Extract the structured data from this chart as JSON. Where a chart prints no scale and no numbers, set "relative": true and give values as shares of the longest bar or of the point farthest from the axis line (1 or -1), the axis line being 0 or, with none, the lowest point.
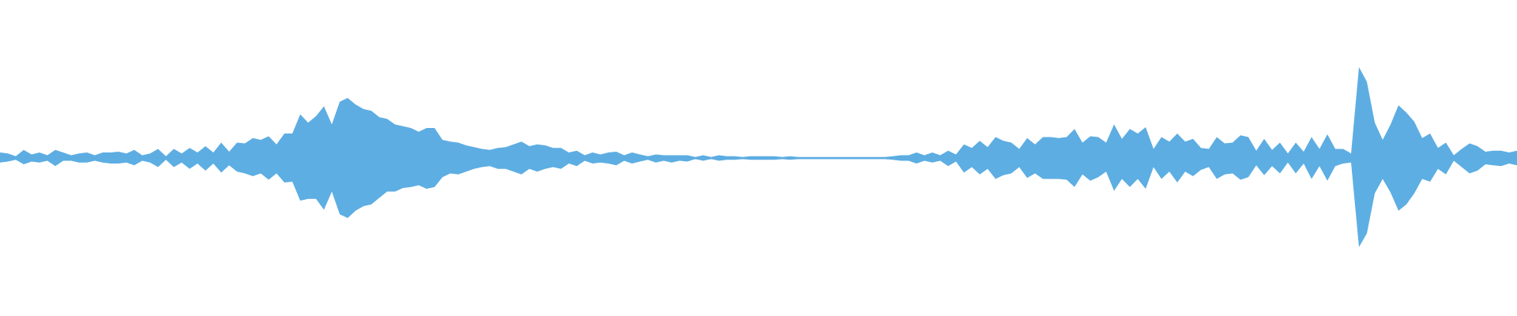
{
  "chart_data": {
    "type": "area",
    "relative": true,
    "categories": [
      null,
      null,
      null,
      null,
      null,
      null,
      null,
      null,
      null,
      null,
      null,
      null,
      null,
      null,
      null,
      null,
      null,
      null,
      null,
      null,
      null,
      null,
      null,
      null,
      null,
      null,
      null,
      null,
      null,
      null,
      null,
      null,
      null,
      null,
      null,
      null,
      null,
      null,
      null,
      null,
      null,
      null,
      null,
      null,
      null,
      null,
      null,
      null,
      null,
      null,
      null,
      null,
      null,
      null,
      null,
      null,
      null,
      null,
      null,
      null,
      null,
      null,
      null,
      null,
      null,
      null,
      null,
      null,
      null,
      null,
      null,
      null,
      null,
      null,
      null,
      null,
      null,
      null,
      null,
      null,
      null,
      null,
      null,
      null,
      null,
      null,
      null,
      null,
      null,
      null,
      null,
      null,
      null,
      null,
      null,
      null,
      null,
      null,
      null,
      null,
      null,
      null,
      null,
      null,
      null,
      null,
      null,
      null,
      null,
      null,
      null,
      null,
      null,
      null,
      null,
      null,
      null,
      null,
      null,
      null,
      null,
      null,
      null,
      null,
      null,
      null,
      null,
      null,
      null,
      null,
      null,
      null,
      null,
      null,
      null,
      null,
      null,
      null,
      null,
      null,
      null,
      null,
      null,
      null,
      null,
      null,
      null,
      null,
      null,
      null,
      null,
      null,
      null,
      null,
      null,
      null,
      null,
      null,
      null,
      null,
      null,
      null,
      null,
      null,
      null,
      null,
      null,
      null,
      null,
      null,
      null,
      null,
      null,
      null,
      null,
      null,
      null,
      null,
      null,
      null,
      null,
      null,
      null,
      null,
      null,
      null,
      null,
      null,
      null,
      null,
      null,
      null,
      null
    ],
    "series": [
      {
        "color": "#5dade2",
        "values": [
          0.06,
          0.05,
          0.02,
          0.09,
          0.04,
          0.06,
          0.03,
          0.09,
          0.06,
          0.03,
          0.05,
          0.06,
          0.03,
          0.06,
          0.06,
          0.07,
          0.05,
          0.09,
          0.03,
          0.05,
          0.1,
          0.02,
          0.1,
          0.05,
          0.11,
          0.06,
          0.13,
          0.06,
          0.17,
          0.07,
          0.17,
          0.16,
          0.22,
          0.2,
          0.24,
          0.15,
          0.27,
          0.27,
          0.48,
          0.39,
          0.46,
          0.57,
          0.37,
          0.62,
          0.66,
          0.59,
          0.54,
          0.52,
          0.45,
          0.43,
          0.37,
          0.35,
          0.33,
          0.29,
          0.33,
          0.33,
          0.2,
          0.18,
          0.17,
          0.14,
          0.12,
          0.1,
          0.09,
          0.11,
          0.12,
          0.15,
          0.18,
          0.13,
          0.15,
          0.14,
          0.11,
          0.11,
          0.06,
          0.08,
          0.03,
          0.06,
          0.04,
          0.06,
          0.07,
          0.03,
          0.06,
          0.04,
          0.02,
          0.04,
          0.03,
          0.03,
          0.03,
          0.03,
          0.01,
          0.03,
          0.01,
          0.03,
          0.02,
          0.02,
          0.01,
          0.02,
          0.02,
          0.02,
          0.02,
          0.01,
          0.02,
          0.01,
          0.01,
          0.01,
          0.01,
          0.01,
          0.01,
          0.01,
          0.01,
          0.01,
          0.01,
          0.01,
          0.01,
          0.02,
          0.03,
          0.03,
          0.06,
          0.03,
          0.06,
          0.03,
          0.08,
          0.04,
          0.15,
          0.11,
          0.19,
          0.12,
          0.23,
          0.19,
          0.17,
          0.1,
          0.22,
          0.15,
          0.23,
          0.23,
          0.22,
          0.23,
          0.32,
          0.17,
          0.24,
          0.23,
          0.17,
          0.37,
          0.21,
          0.32,
          0.27,
          0.34,
          0.1,
          0.23,
          0.18,
          0.27,
          0.18,
          0.21,
          0.11,
          0.1,
          0.23,
          0.16,
          0.17,
          0.25,
          0.23,
          0.08,
          0.21,
          0.09,
          0.17,
          0.05,
          0.17,
          0.07,
          0.23,
          0.1,
          0.26,
          0.1,
          0.1,
          0.05,
          1,
          0.84,
          0.39,
          0.2,
          0.37,
          0.58,
          0.5,
          0.4,
          0.22,
          0.27,
          0.11,
          0.17,
          0.03,
          0.1,
          0.16,
          0.13,
          0.07,
          0.08,
          0.08,
          0.06,
          0.08
        ]
      },
      {
        "color": "#5daee2",
        "values": [
          -0.05,
          -0.04,
          -0.02,
          -0.07,
          -0.04,
          -0.05,
          -0.03,
          -0.09,
          -0.03,
          -0.03,
          -0.05,
          -0.05,
          -0.03,
          -0.05,
          -0.06,
          -0.06,
          -0.05,
          -0.08,
          -0.03,
          -0.05,
          -0.1,
          -0.02,
          -0.1,
          -0.05,
          -0.12,
          -0.06,
          -0.14,
          -0.06,
          -0.16,
          -0.08,
          -0.15,
          -0.17,
          -0.2,
          -0.17,
          -0.24,
          -0.17,
          -0.27,
          -0.26,
          -0.47,
          -0.45,
          -0.45,
          -0.57,
          -0.37,
          -0.62,
          -0.66,
          -0.58,
          -0.53,
          -0.51,
          -0.44,
          -0.37,
          -0.37,
          -0.33,
          -0.32,
          -0.3,
          -0.34,
          -0.32,
          -0.21,
          -0.17,
          -0.18,
          -0.15,
          -0.12,
          -0.1,
          -0.09,
          -0.12,
          -0.12,
          -0.15,
          -0.18,
          -0.12,
          -0.15,
          -0.12,
          -0.1,
          -0.12,
          -0.06,
          -0.09,
          -0.03,
          -0.06,
          -0.05,
          -0.06,
          -0.08,
          -0.03,
          -0.06,
          -0.04,
          -0.02,
          -0.05,
          -0.03,
          -0.05,
          -0.03,
          -0.04,
          -0.01,
          -0.03,
          -0.01,
          -0.03,
          -0.02,
          -0.02,
          -0.01,
          -0.02,
          -0.02,
          -0.02,
          -0.02,
          -0.01,
          -0.02,
          -0.01,
          -0.01,
          -0.01,
          -0.01,
          -0.01,
          -0.01,
          -0.01,
          -0.01,
          -0.01,
          -0.01,
          -0.01,
          -0.01,
          -0.02,
          -0.03,
          -0.03,
          -0.06,
          -0.03,
          -0.05,
          -0.03,
          -0.09,
          -0.04,
          -0.16,
          -0.1,
          -0.18,
          -0.12,
          -0.23,
          -0.19,
          -0.17,
          -0.1,
          -0.22,
          -0.17,
          -0.23,
          -0.23,
          -0.23,
          -0.24,
          -0.32,
          -0.18,
          -0.25,
          -0.21,
          -0.15,
          -0.36,
          -0.23,
          -0.32,
          -0.23,
          -0.34,
          -0.1,
          -0.23,
          -0.15,
          -0.27,
          -0.15,
          -0.2,
          -0.13,
          -0.1,
          -0.23,
          -0.18,
          -0.17,
          -0.24,
          -0.21,
          -0.08,
          -0.19,
          -0.09,
          -0.17,
          -0.05,
          -0.17,
          -0.06,
          -0.23,
          -0.09,
          -0.25,
          -0.09,
          -0.06,
          -0.05,
          -0.98,
          -0.83,
          -0.39,
          -0.23,
          -0.38,
          -0.58,
          -0.51,
          -0.39,
          -0.23,
          -0.26,
          -0.12,
          -0.18,
          -0.03,
          -0.1,
          -0.17,
          -0.14,
          -0.07,
          -0.08,
          -0.09,
          -0.06,
          -0.08
        ]
      }
    ]
  }
}
